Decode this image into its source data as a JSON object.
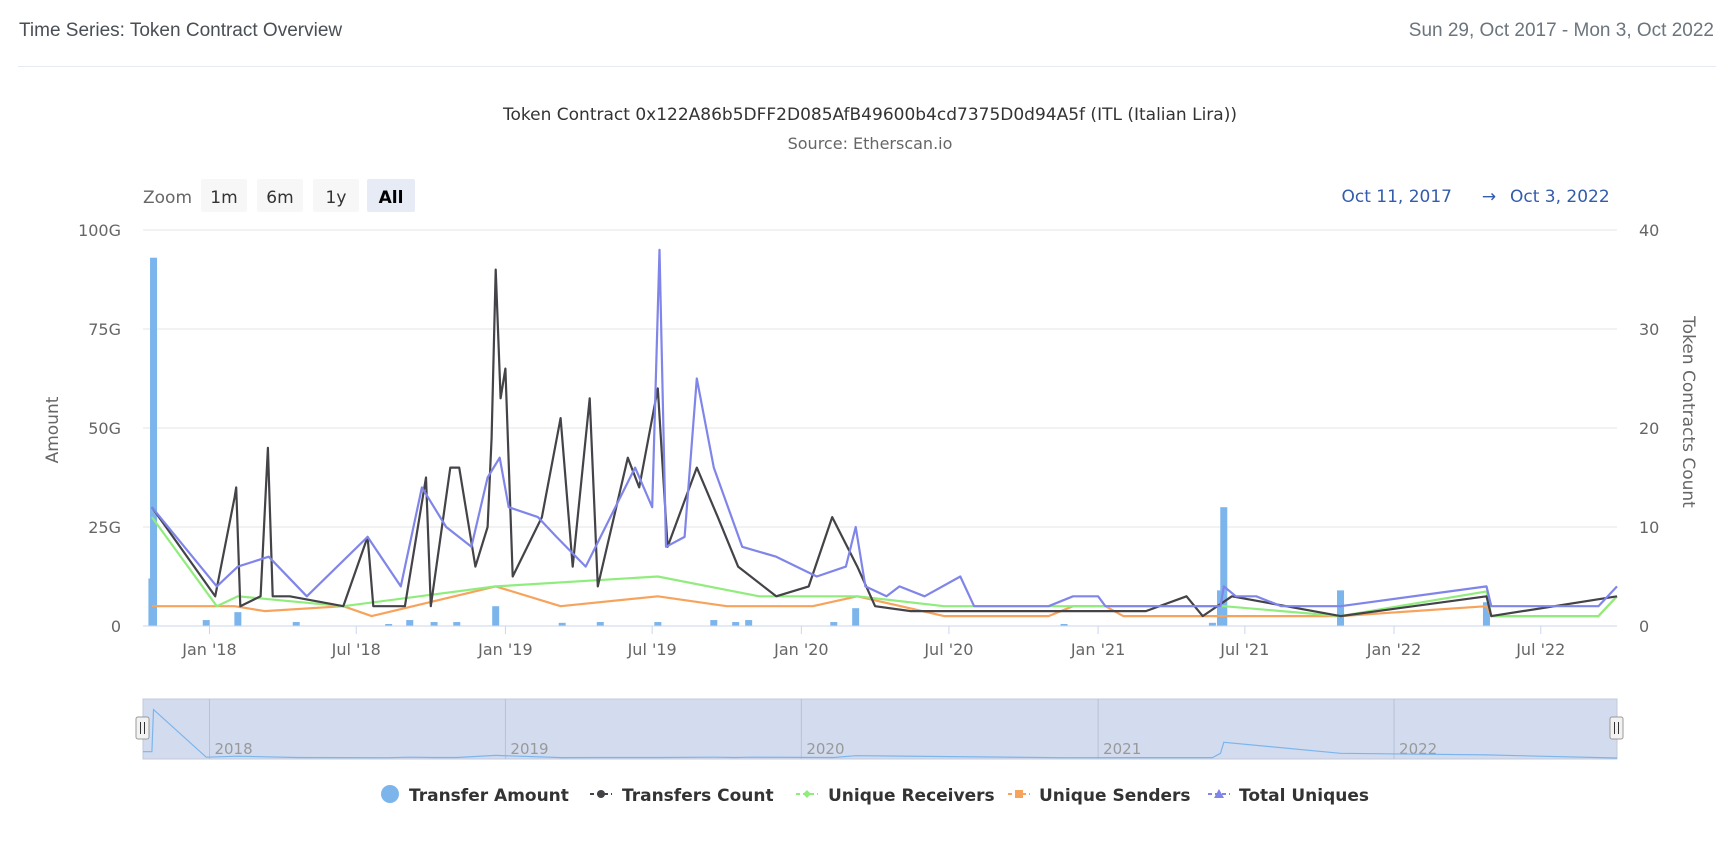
{
  "card": {
    "title": "Time Series: Token Contract Overview",
    "date_range": "Sun 29, Oct 2017 - Mon 3, Oct 2022"
  },
  "chart_data": {
    "type": "line",
    "title": "Token Contract 0x122A86b5DFF2D085AfB49600b4cd7375D0d94A5f (ITL (Italian Lira))",
    "subtitle": "Source: Etherscan.io",
    "zoom": {
      "label": "Zoom",
      "buttons": [
        "1m",
        "6m",
        "1y",
        "All"
      ],
      "selected": "All"
    },
    "range_selector": {
      "from": "Oct 11, 2017",
      "arrow": "→",
      "to": "Oct 3, 2022"
    },
    "x_domain": [
      "2017-10-11",
      "2022-10-03"
    ],
    "x_ticks": [
      {
        "label": "Jan '18",
        "date": "2018-01-01"
      },
      {
        "label": "Jul '18",
        "date": "2018-07-01"
      },
      {
        "label": "Jan '19",
        "date": "2019-01-01"
      },
      {
        "label": "Jul '19",
        "date": "2019-07-01"
      },
      {
        "label": "Jan '20",
        "date": "2020-01-01"
      },
      {
        "label": "Jul '20",
        "date": "2020-07-01"
      },
      {
        "label": "Jan '21",
        "date": "2021-01-01"
      },
      {
        "label": "Jul '21",
        "date": "2021-07-01"
      },
      {
        "label": "Jan '22",
        "date": "2022-01-01"
      },
      {
        "label": "Jul '22",
        "date": "2022-07-01"
      }
    ],
    "y_left": {
      "label": "Amount",
      "min": 0,
      "max": 100,
      "unit": "G",
      "ticks": [
        "0",
        "25G",
        "50G",
        "75G",
        "100G"
      ]
    },
    "y_right": {
      "label": "Token Contracts Count",
      "min": 0,
      "max": 40,
      "ticks": [
        "0",
        "10",
        "20",
        "30",
        "40"
      ]
    },
    "navigator_years": [
      "2018",
      "2019",
      "2020",
      "2021",
      "2022"
    ],
    "legend": [
      "Transfer Amount",
      "Transfers Count",
      "Unique Receivers",
      "Unique Senders",
      "Total Uniques"
    ],
    "colors": {
      "Transfer Amount": "#7cb5ec",
      "Transfers Count": "#434348",
      "Unique Receivers": "#90ed7d",
      "Unique Senders": "#f7a35c",
      "Total Uniques": "#8085e9"
    },
    "series": [
      {
        "name": "Transfer Amount",
        "axis": "left",
        "kind": "column",
        "points": [
          [
            "2017-10-24",
            93
          ],
          [
            "2017-10-22",
            12
          ],
          [
            "2017-12-28",
            1.5
          ],
          [
            "2018-02-05",
            3.5
          ],
          [
            "2018-04-18",
            1
          ],
          [
            "2018-08-10",
            0.5
          ],
          [
            "2018-09-05",
            1.5
          ],
          [
            "2018-10-05",
            1
          ],
          [
            "2018-11-02",
            1
          ],
          [
            "2018-12-20",
            5
          ],
          [
            "2019-03-12",
            0.8
          ],
          [
            "2019-04-28",
            1
          ],
          [
            "2019-07-08",
            1
          ],
          [
            "2019-09-15",
            1.5
          ],
          [
            "2019-10-12",
            1
          ],
          [
            "2019-10-28",
            1.5
          ],
          [
            "2020-02-10",
            1
          ],
          [
            "2020-03-08",
            4.5
          ],
          [
            "2020-11-20",
            0.5
          ],
          [
            "2021-05-22",
            0.8
          ],
          [
            "2021-06-05",
            30
          ],
          [
            "2021-06-01",
            9
          ],
          [
            "2021-10-27",
            9
          ],
          [
            "2022-04-25",
            6
          ]
        ]
      },
      {
        "name": "Transfers Count",
        "axis": "right",
        "points": [
          [
            "2017-10-22",
            12
          ],
          [
            "2018-01-08",
            3
          ],
          [
            "2018-02-01",
            13
          ],
          [
            "2018-02-03",
            14
          ],
          [
            "2018-02-08",
            2
          ],
          [
            "2018-03-05",
            3
          ],
          [
            "2018-03-14",
            18
          ],
          [
            "2018-03-20",
            3
          ],
          [
            "2018-04-10",
            3
          ],
          [
            "2018-06-15",
            2
          ],
          [
            "2018-07-15",
            9
          ],
          [
            "2018-07-22",
            2
          ],
          [
            "2018-08-30",
            2
          ],
          [
            "2018-09-25",
            15
          ],
          [
            "2018-10-01",
            2
          ],
          [
            "2018-10-25",
            16
          ],
          [
            "2018-11-05",
            16
          ],
          [
            "2018-11-25",
            6
          ],
          [
            "2018-12-10",
            10
          ],
          [
            "2018-12-15",
            19
          ],
          [
            "2018-12-20",
            36
          ],
          [
            "2018-12-26",
            23
          ],
          [
            "2019-01-01",
            26
          ],
          [
            "2019-01-10",
            5
          ],
          [
            "2019-02-15",
            11
          ],
          [
            "2019-03-10",
            21
          ],
          [
            "2019-03-25",
            6
          ],
          [
            "2019-04-15",
            23
          ],
          [
            "2019-04-25",
            4
          ],
          [
            "2019-06-01",
            17
          ],
          [
            "2019-06-15",
            14
          ],
          [
            "2019-07-08",
            24
          ],
          [
            "2019-07-20",
            8
          ],
          [
            "2019-08-25",
            16
          ],
          [
            "2019-09-20",
            11
          ],
          [
            "2019-10-15",
            6
          ],
          [
            "2019-12-01",
            3
          ],
          [
            "2020-01-10",
            4
          ],
          [
            "2020-02-08",
            11
          ],
          [
            "2020-03-10",
            6
          ],
          [
            "2020-04-01",
            2
          ],
          [
            "2020-05-15",
            1.5
          ],
          [
            "2020-06-25",
            1.5
          ],
          [
            "2020-09-01",
            1.5
          ],
          [
            "2020-12-15",
            1.5
          ],
          [
            "2021-03-01",
            1.5
          ],
          [
            "2021-04-20",
            3
          ],
          [
            "2021-05-10",
            1
          ],
          [
            "2021-06-15",
            3
          ],
          [
            "2021-10-27",
            1
          ],
          [
            "2022-04-25",
            3
          ],
          [
            "2022-05-01",
            1
          ],
          [
            "2022-10-03",
            3
          ]
        ]
      },
      {
        "name": "Unique Receivers",
        "axis": "right",
        "points": [
          [
            "2017-10-22",
            11
          ],
          [
            "2018-01-10",
            2
          ],
          [
            "2018-02-05",
            3
          ],
          [
            "2018-06-15",
            2
          ],
          [
            "2018-12-20",
            4
          ],
          [
            "2019-07-08",
            5
          ],
          [
            "2019-11-10",
            3
          ],
          [
            "2020-03-10",
            3
          ],
          [
            "2020-06-25",
            2
          ],
          [
            "2021-06-05",
            2
          ],
          [
            "2021-10-27",
            1
          ],
          [
            "2022-04-25",
            3.5
          ],
          [
            "2022-05-01",
            1
          ],
          [
            "2022-09-10",
            1
          ],
          [
            "2022-10-03",
            3
          ]
        ]
      },
      {
        "name": "Unique Senders",
        "axis": "right",
        "points": [
          [
            "2017-10-22",
            2
          ],
          [
            "2018-02-01",
            2
          ],
          [
            "2018-03-10",
            1.5
          ],
          [
            "2018-06-15",
            2
          ],
          [
            "2018-07-20",
            1
          ],
          [
            "2018-12-20",
            4
          ],
          [
            "2019-03-10",
            2
          ],
          [
            "2019-07-08",
            3
          ],
          [
            "2019-10-01",
            2
          ],
          [
            "2020-01-15",
            2
          ],
          [
            "2020-03-10",
            3
          ],
          [
            "2020-06-25",
            1
          ],
          [
            "2020-11-01",
            1
          ],
          [
            "2020-12-01",
            2
          ],
          [
            "2021-01-10",
            2
          ],
          [
            "2021-02-01",
            1
          ],
          [
            "2021-06-05",
            1
          ],
          [
            "2021-10-27",
            1
          ],
          [
            "2022-04-25",
            2
          ],
          [
            "2022-05-01",
            1
          ],
          [
            "2022-09-10",
            1
          ],
          [
            "2022-10-03",
            3
          ]
        ]
      },
      {
        "name": "Total Uniques",
        "axis": "right",
        "points": [
          [
            "2017-10-22",
            12
          ],
          [
            "2018-01-10",
            4
          ],
          [
            "2018-02-05",
            6
          ],
          [
            "2018-03-15",
            7
          ],
          [
            "2018-05-01",
            3
          ],
          [
            "2018-07-15",
            9
          ],
          [
            "2018-08-25",
            4
          ],
          [
            "2018-09-20",
            14
          ],
          [
            "2018-10-20",
            10
          ],
          [
            "2018-11-20",
            8
          ],
          [
            "2018-12-10",
            15
          ],
          [
            "2018-12-25",
            17
          ],
          [
            "2019-01-05",
            12
          ],
          [
            "2019-02-10",
            11
          ],
          [
            "2019-03-05",
            9
          ],
          [
            "2019-04-10",
            6
          ],
          [
            "2019-06-10",
            16
          ],
          [
            "2019-07-01",
            12
          ],
          [
            "2019-07-10",
            38
          ],
          [
            "2019-07-18",
            8
          ],
          [
            "2019-08-10",
            9
          ],
          [
            "2019-08-25",
            25
          ],
          [
            "2019-09-15",
            16
          ],
          [
            "2019-10-20",
            8
          ],
          [
            "2019-12-01",
            7
          ],
          [
            "2020-01-20",
            5
          ],
          [
            "2020-02-25",
            6
          ],
          [
            "2020-03-08",
            10
          ],
          [
            "2020-03-20",
            4
          ],
          [
            "2020-04-15",
            3
          ],
          [
            "2020-05-01",
            4
          ],
          [
            "2020-06-01",
            3
          ],
          [
            "2020-07-15",
            5
          ],
          [
            "2020-08-01",
            2
          ],
          [
            "2020-11-01",
            2
          ],
          [
            "2020-12-01",
            3
          ],
          [
            "2021-01-01",
            3
          ],
          [
            "2021-01-10",
            2
          ],
          [
            "2021-06-01",
            2
          ],
          [
            "2021-06-05",
            4
          ],
          [
            "2021-06-20",
            3
          ],
          [
            "2021-07-15",
            3
          ],
          [
            "2021-08-15",
            2
          ],
          [
            "2021-10-27",
            2
          ],
          [
            "2022-04-25",
            4
          ],
          [
            "2022-05-01",
            2
          ],
          [
            "2022-09-10",
            2
          ],
          [
            "2022-10-03",
            4
          ]
        ]
      }
    ]
  }
}
